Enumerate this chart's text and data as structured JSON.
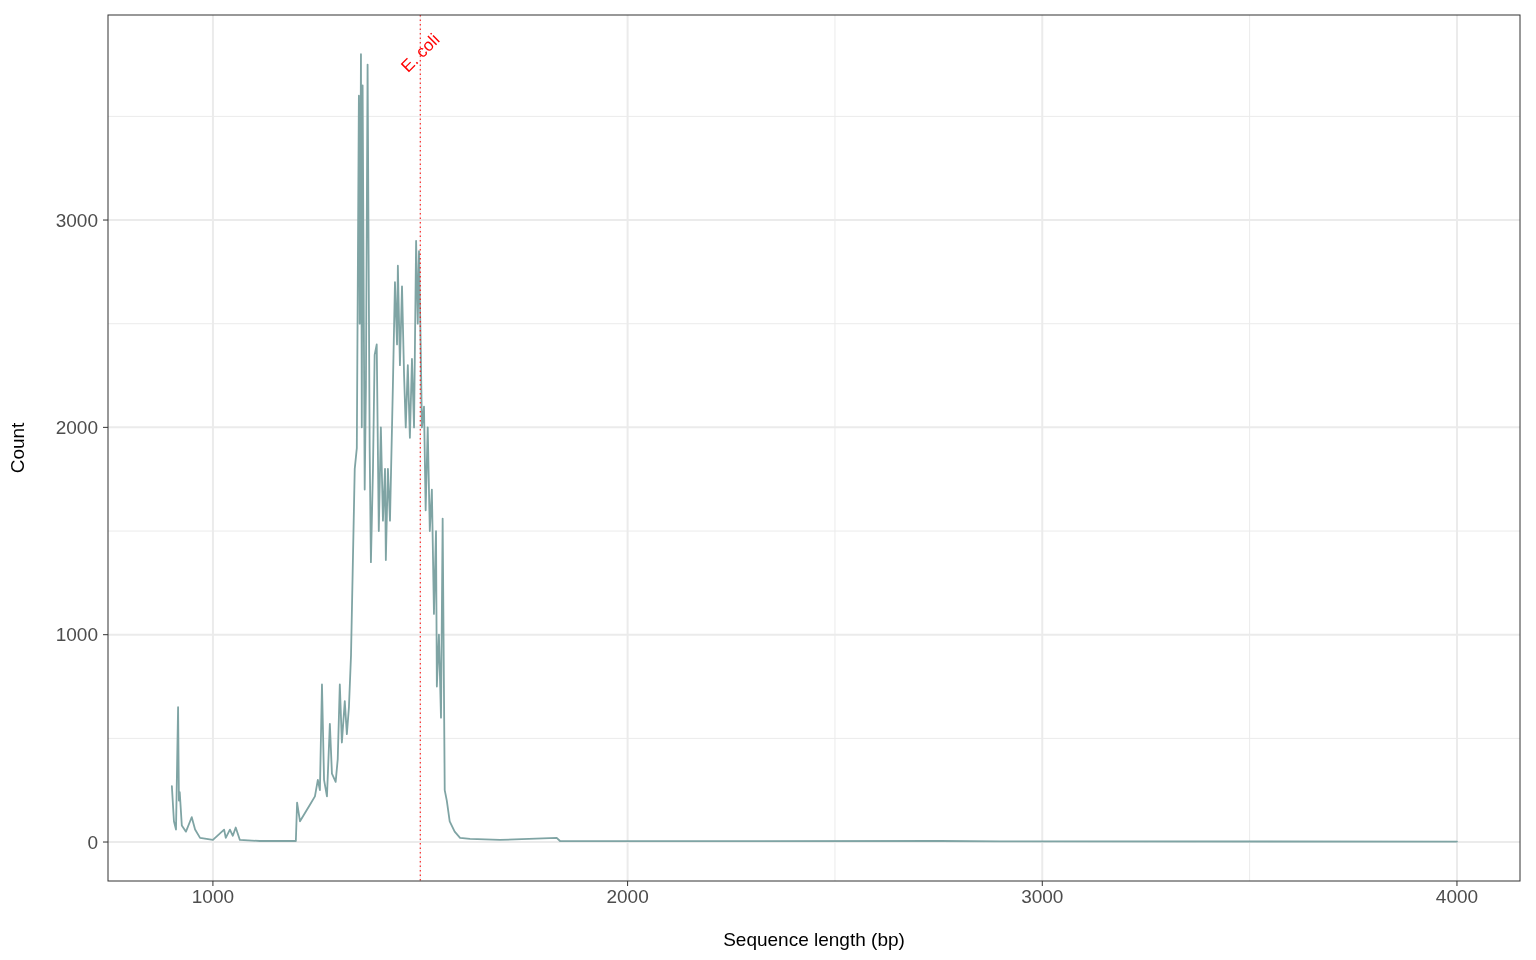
{
  "chart_data": {
    "type": "line",
    "xlabel": "Sequence length (bp)",
    "ylabel": "Count",
    "xlim": [
      747,
      4152
    ],
    "ylim": [
      -188,
      3989
    ],
    "xticks": [
      {
        "value": 1000,
        "label": "1000"
      },
      {
        "value": 1500,
        "label": null
      },
      {
        "value": 2000,
        "label": "2000"
      },
      {
        "value": 2500,
        "label": null
      },
      {
        "value": 3000,
        "label": "3000"
      },
      {
        "value": 3500,
        "label": null
      },
      {
        "value": 4000,
        "label": "4000"
      }
    ],
    "yticks": [
      {
        "value": 0,
        "label": "0"
      },
      {
        "value": 500,
        "label": null
      },
      {
        "value": 1000,
        "label": "1000"
      },
      {
        "value": 1500,
        "label": null
      },
      {
        "value": 2000,
        "label": "2000"
      },
      {
        "value": 2500,
        "label": null
      },
      {
        "value": 3000,
        "label": "3000"
      },
      {
        "value": 3500,
        "label": null
      }
    ],
    "grid": true,
    "ref_lines": [
      {
        "axis": "x",
        "value": 1500,
        "label": "E. coli",
        "color": "#ff0000",
        "line_style": "dotted"
      }
    ],
    "series": [
      {
        "color": "#7fa4a4",
        "x": [
          901,
          906,
          911,
          916,
          918,
          920,
          925,
          935,
          945,
          949,
          957,
          969,
          1000,
          1027,
          1031,
          1041,
          1048,
          1055,
          1065,
          1113,
          1200,
          1203,
          1210,
          1222,
          1234,
          1246,
          1253,
          1258,
          1263,
          1268,
          1275,
          1282,
          1287,
          1296,
          1301,
          1306,
          1311,
          1318,
          1323,
          1328,
          1333,
          1337,
          1342,
          1347,
          1352,
          1354,
          1357,
          1359,
          1361,
          1366,
          1369,
          1373,
          1378,
          1381,
          1386,
          1390,
          1395,
          1400,
          1405,
          1410,
          1415,
          1417,
          1422,
          1427,
          1434,
          1439,
          1444,
          1446,
          1451,
          1456,
          1461,
          1465,
          1470,
          1475,
          1480,
          1485,
          1490,
          1494,
          1497,
          1501,
          1504,
          1509,
          1513,
          1518,
          1523,
          1528,
          1533,
          1538,
          1540,
          1545,
          1550,
          1554,
          1559,
          1564,
          1571,
          1583,
          1596,
          1620,
          1692,
          1829,
          1837,
          2174,
          2753,
          2898,
          4000
        ],
        "values": [
          270,
          100,
          60,
          650,
          200,
          240,
          80,
          50,
          100,
          120,
          60,
          20,
          10,
          60,
          20,
          60,
          30,
          70,
          10,
          5,
          5,
          190,
          100,
          140,
          180,
          220,
          300,
          250,
          760,
          300,
          220,
          570,
          330,
          290,
          400,
          760,
          480,
          680,
          520,
          650,
          900,
          1300,
          1800,
          1900,
          3600,
          2500,
          3800,
          2000,
          3650,
          1700,
          2200,
          3750,
          1900,
          1350,
          1800,
          2350,
          2400,
          1500,
          2000,
          1550,
          1800,
          1360,
          1800,
          1550,
          2200,
          2700,
          2400,
          2780,
          2300,
          2680,
          2250,
          2000,
          2300,
          1950,
          2330,
          2000,
          2900,
          2500,
          2850,
          2400,
          2000,
          2100,
          1600,
          2000,
          1500,
          1700,
          1100,
          1500,
          750,
          1000,
          600,
          1560,
          250,
          200,
          100,
          50,
          20,
          15,
          10,
          20,
          5,
          4,
          5,
          3,
          2
        ]
      }
    ]
  }
}
